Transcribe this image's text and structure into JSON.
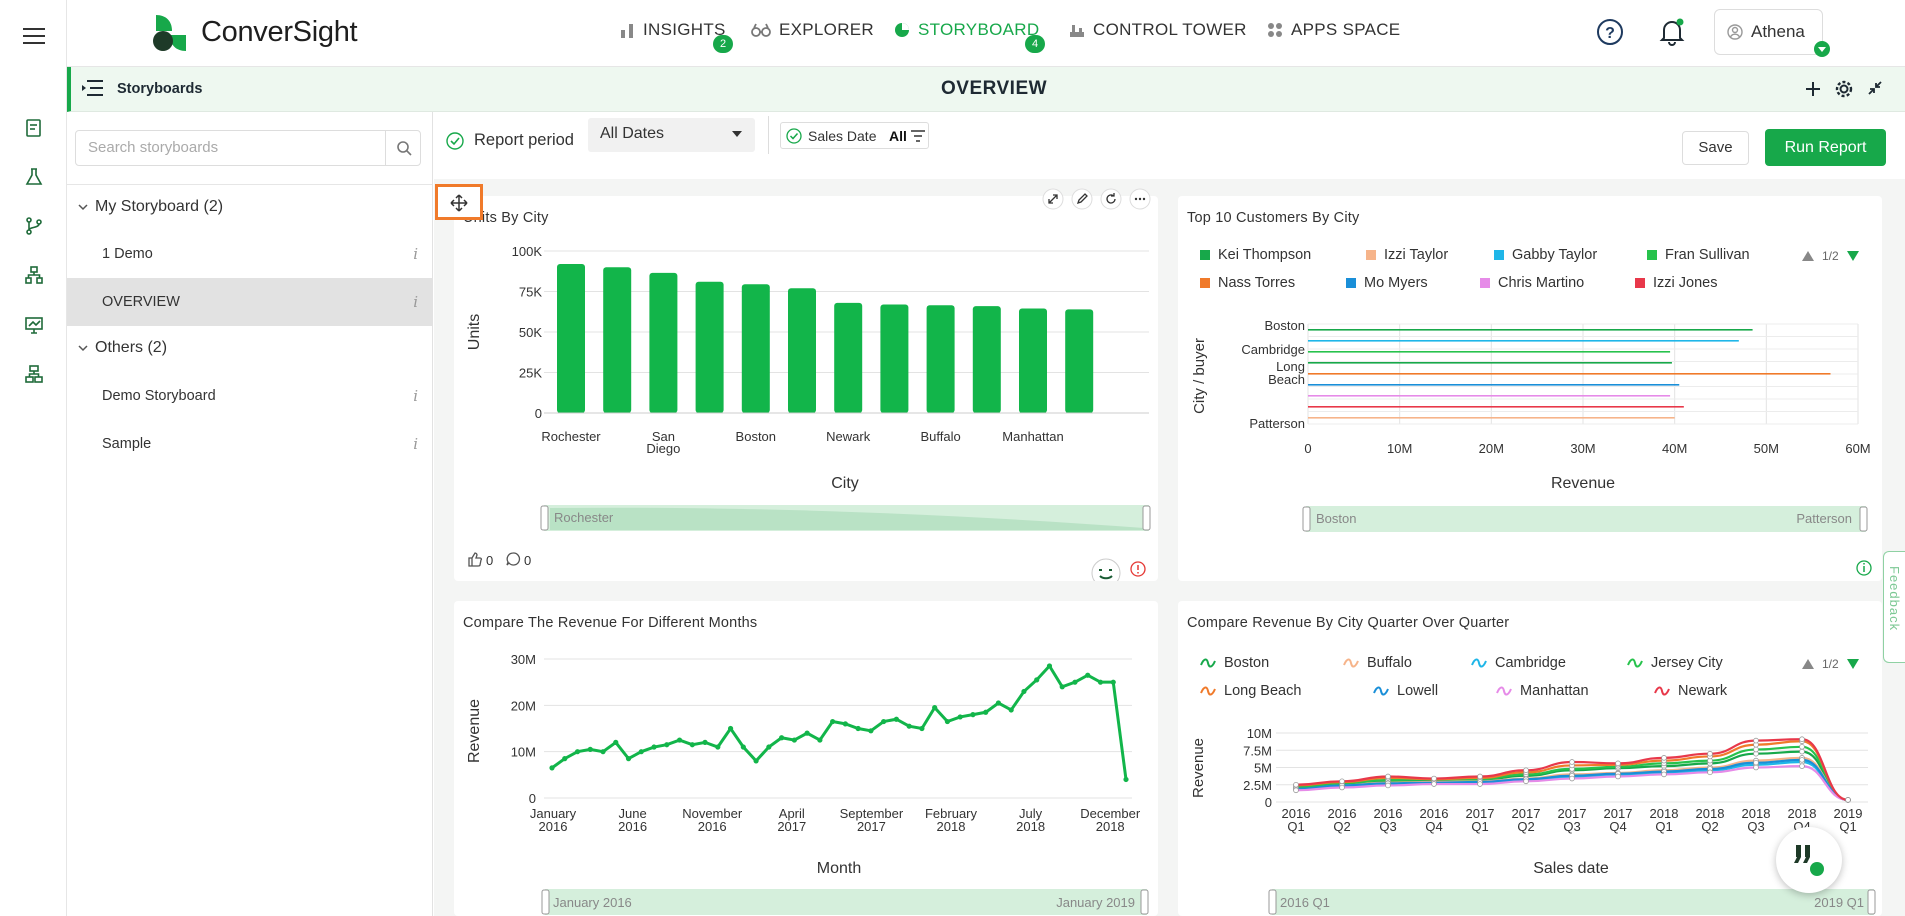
{
  "header": {
    "logo": "ConverSight",
    "nav": [
      {
        "label": "INSIGHTS",
        "badge": "2"
      },
      {
        "label": "EXPLORER",
        "badge": ""
      },
      {
        "label": "STORYBOARD",
        "badge": "4"
      },
      {
        "label": "CONTROL TOWER",
        "badge": ""
      },
      {
        "label": "APPS SPACE",
        "badge": ""
      }
    ],
    "user": "Athena"
  },
  "titlebar": {
    "storyboards": "Storyboards",
    "title": "OVERVIEW"
  },
  "sidebar": {
    "search_placeholder": "Search storyboards",
    "groups": [
      {
        "label": "My Storyboard (2)",
        "items": [
          "1 Demo",
          "OVERVIEW"
        ]
      },
      {
        "label": "Others (2)",
        "items": [
          "Demo Storyboard",
          "Sample"
        ]
      }
    ],
    "info": "i"
  },
  "filters": {
    "report_period": "Report period",
    "dates": "All Dates",
    "sales_date": "Sales Date",
    "sales_date_value": "All",
    "save": "Save",
    "run": "Run Report"
  },
  "panel1": {
    "title": "Units By City",
    "likes": "0",
    "comments": "0",
    "slider_start": "Rochester",
    "chart_data": {
      "type": "bar",
      "categories": [
        "Rochester",
        "",
        "San Diego",
        "",
        "Boston",
        "",
        "Newark",
        "",
        "Buffalo",
        "",
        "Manhattan",
        ""
      ],
      "tick_labels": [
        "Rochester",
        "San Diego",
        "Boston",
        "Newark",
        "Buffalo",
        "Manhattan"
      ],
      "values": [
        92000,
        90000,
        86500,
        81000,
        79500,
        77000,
        68000,
        67000,
        66500,
        66000,
        64500,
        64000
      ],
      "xlabel": "City",
      "ylabel": "Units",
      "yticks": [
        "0",
        "25K",
        "50K",
        "75K",
        "100K"
      ],
      "ylim": [
        0,
        100000
      ],
      "color": "#12b54a"
    }
  },
  "panel2": {
    "title": "Top 10 Customers By City",
    "page": "1/2",
    "slider_start": "Boston",
    "slider_end": "Patterson",
    "legend": [
      {
        "name": "Kei Thompson",
        "color": "#17a84a"
      },
      {
        "name": "Izzi Taylor",
        "color": "#f6b48a"
      },
      {
        "name": "Gabby Taylor",
        "color": "#1fb6e8"
      },
      {
        "name": "Fran Sullivan",
        "color": "#27c24c"
      },
      {
        "name": "Nass Torres",
        "color": "#f07a2a"
      },
      {
        "name": "Mo Myers",
        "color": "#1a8fd8"
      },
      {
        "name": "Chris Martino",
        "color": "#e68be8"
      },
      {
        "name": "Izzi Jones",
        "color": "#e8384a"
      }
    ],
    "chart_data": {
      "type": "bar",
      "orientation": "horizontal",
      "ytick_labels": [
        "Boston",
        "Cambridge",
        "Long Beach",
        "Patterson"
      ],
      "xlabel": "Revenue",
      "ylabel": "City / buyer",
      "xticks": [
        "0",
        "10M",
        "20M",
        "30M",
        "40M",
        "50M",
        "60M"
      ],
      "xlim": [
        0,
        60000000
      ],
      "series": [
        {
          "name": "Kei Thompson",
          "values": [
            48500000
          ]
        },
        {
          "name": "Gabby Taylor",
          "values": [
            47000000
          ]
        },
        {
          "name": "Fran Sullivan",
          "values": [
            39500000
          ]
        },
        {
          "name": "Kei Thompson",
          "values": [
            39700000
          ]
        },
        {
          "name": "Nass Torres",
          "values": [
            57000000
          ]
        },
        {
          "name": "Mo Myers",
          "values": [
            40500000
          ]
        },
        {
          "name": "Chris Martino",
          "values": [
            39500000
          ]
        },
        {
          "name": "Izzi Jones",
          "values": [
            41000000
          ]
        },
        {
          "name": "Izzi Taylor",
          "values": [
            40000000
          ]
        }
      ]
    }
  },
  "panel3": {
    "title": "Compare The Revenue For Different Months",
    "slider_start": "January 2016",
    "slider_end": "January 2019",
    "chart_data": {
      "type": "line",
      "xlabel": "Month",
      "ylabel": "Revenue",
      "yticks": [
        "0",
        "10M",
        "20M",
        "30M"
      ],
      "ylim": [
        0,
        30000000
      ],
      "xtick_labels": [
        [
          "January",
          "2016"
        ],
        [
          "June",
          "2016"
        ],
        [
          "November",
          "2016"
        ],
        [
          "April",
          "2017"
        ],
        [
          "September",
          "2017"
        ],
        [
          "February",
          "2018"
        ],
        [
          "July",
          "2018"
        ],
        [
          "December",
          "2018"
        ]
      ],
      "values": [
        6500000,
        8500000,
        10000000,
        10500000,
        10000000,
        12000000,
        8500000,
        10000000,
        11000000,
        11500000,
        12500000,
        11500000,
        12000000,
        11000000,
        15000000,
        11000000,
        8000000,
        11000000,
        13000000,
        12500000,
        14000000,
        12500000,
        16500000,
        16000000,
        15000000,
        14500000,
        16500000,
        17000000,
        15500000,
        15000000,
        19500000,
        16500000,
        17500000,
        18000000,
        18500000,
        20500000,
        19000000,
        23000000,
        25500000,
        28500000,
        24000000,
        25000000,
        26500000,
        25000000,
        25000000,
        4000000
      ],
      "color": "#12b54a"
    }
  },
  "panel4": {
    "title": "Compare Revenue By City Quarter Over Quarter",
    "page": "1/2",
    "slider_start": "2016 Q1",
    "slider_end": "2019 Q1",
    "legend": [
      {
        "name": "Boston",
        "color": "#17a84a"
      },
      {
        "name": "Buffalo",
        "color": "#f6b48a"
      },
      {
        "name": "Cambridge",
        "color": "#1fb6e8"
      },
      {
        "name": "Jersey City",
        "color": "#27c24c"
      },
      {
        "name": "Long Beach",
        "color": "#f07a2a"
      },
      {
        "name": "Lowell",
        "color": "#1a8fd8"
      },
      {
        "name": "Manhattan",
        "color": "#e68be8"
      },
      {
        "name": "Newark",
        "color": "#e8384a"
      }
    ],
    "chart_data": {
      "type": "line",
      "xlabel": "Sales date",
      "ylabel": "Revenue",
      "yticks": [
        "0",
        "2.5M",
        "5M",
        "7.5M",
        "10M"
      ],
      "ylim": [
        0,
        10000000
      ],
      "xtick_labels": [
        [
          "2016",
          "Q1"
        ],
        [
          "2016",
          "Q2"
        ],
        [
          "2016",
          "Q3"
        ],
        [
          "2016",
          "Q4"
        ],
        [
          "2017",
          "Q1"
        ],
        [
          "2017",
          "Q2"
        ],
        [
          "2017",
          "Q3"
        ],
        [
          "2017",
          "Q4"
        ],
        [
          "2018",
          "Q1"
        ],
        [
          "2018",
          "Q2"
        ],
        [
          "2018",
          "Q3"
        ],
        [
          "2018",
          "Q4"
        ],
        [
          "2019",
          "Q1"
        ]
      ],
      "series": [
        {
          "name": "Boston",
          "values": [
            2200000,
            2600000,
            3000000,
            3100000,
            3200000,
            3800000,
            4600000,
            4900000,
            5200000,
            5600000,
            7000000,
            7300000,
            300000
          ]
        },
        {
          "name": "Buffalo",
          "values": [
            2000000,
            2500000,
            2800000,
            2900000,
            3000000,
            3400000,
            4000000,
            4200000,
            4600000,
            5000000,
            6000000,
            6400000,
            300000
          ]
        },
        {
          "name": "Cambridge",
          "values": [
            1800000,
            2300000,
            2600000,
            2700000,
            2800000,
            3200000,
            3600000,
            3900000,
            4200000,
            4600000,
            5400000,
            5800000,
            300000
          ]
        },
        {
          "name": "Jersey City",
          "values": [
            2100000,
            2700000,
            3200000,
            3300000,
            3300000,
            4000000,
            4800000,
            5100000,
            5600000,
            6000000,
            7600000,
            8000000,
            300000
          ]
        },
        {
          "name": "Long Beach",
          "values": [
            2400000,
            2900000,
            3500000,
            3300000,
            3500000,
            4300000,
            5300000,
            5400000,
            6000000,
            6600000,
            8300000,
            8800000,
            300000
          ]
        },
        {
          "name": "Lowell",
          "values": [
            1900000,
            2400000,
            2700000,
            2800000,
            2900000,
            3300000,
            3800000,
            4100000,
            4400000,
            4800000,
            5700000,
            6100000,
            300000
          ]
        },
        {
          "name": "Manhattan",
          "values": [
            1700000,
            2100000,
            2400000,
            2600000,
            2600000,
            3000000,
            3400000,
            3700000,
            4000000,
            4300000,
            5000000,
            5200000,
            300000
          ]
        },
        {
          "name": "Newark",
          "values": [
            2500000,
            3000000,
            3700000,
            3400000,
            3700000,
            4600000,
            5800000,
            5600000,
            6400000,
            7000000,
            8900000,
            9100000,
            300000
          ]
        }
      ]
    }
  }
}
